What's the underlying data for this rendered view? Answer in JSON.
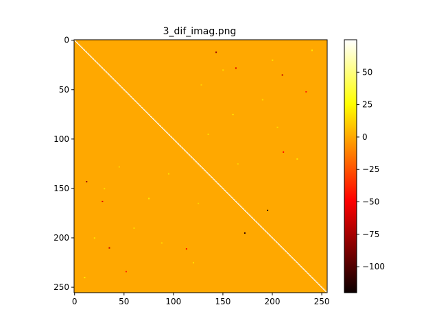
{
  "chart_data": {
    "type": "heatmap",
    "title": "3_dif_imag.png",
    "size": 256,
    "xlim": [
      0,
      256
    ],
    "ylim": [
      256,
      0
    ],
    "y_axis_inverted": true,
    "xticks": [
      0,
      50,
      100,
      150,
      200,
      250
    ],
    "yticks": [
      0,
      50,
      100,
      150,
      200,
      250
    ],
    "colormap": "hot",
    "vmin": -120,
    "vmax": 75,
    "colorbar_ticks": [
      50,
      25,
      0,
      -25,
      -50,
      -75,
      -100
    ],
    "colorbar_tick_labels": [
      "50",
      "25",
      "0",
      "−25",
      "−50",
      "−75",
      "−100"
    ],
    "background_value": 0,
    "diagonal": {
      "from": 0,
      "to": 255,
      "value": 75
    },
    "points": [
      {
        "row": 12,
        "col": 143,
        "value": -80
      },
      {
        "row": 28,
        "col": 163,
        "value": -60
      },
      {
        "row": 35,
        "col": 210,
        "value": -70
      },
      {
        "row": 52,
        "col": 234,
        "value": -40
      },
      {
        "row": 113,
        "col": 211,
        "value": -50
      },
      {
        "row": 143,
        "col": 12,
        "value": -80
      },
      {
        "row": 163,
        "col": 28,
        "value": -60
      },
      {
        "row": 172,
        "col": 195,
        "value": -110
      },
      {
        "row": 195,
        "col": 172,
        "value": -110
      },
      {
        "row": 210,
        "col": 35,
        "value": -70
      },
      {
        "row": 234,
        "col": 52,
        "value": -40
      },
      {
        "row": 211,
        "col": 113,
        "value": -50
      },
      {
        "row": 30,
        "col": 150,
        "value": 15
      },
      {
        "row": 20,
        "col": 200,
        "value": 18
      },
      {
        "row": 45,
        "col": 128,
        "value": 12
      },
      {
        "row": 60,
        "col": 190,
        "value": 15
      },
      {
        "row": 75,
        "col": 160,
        "value": 20
      },
      {
        "row": 88,
        "col": 205,
        "value": 14
      },
      {
        "row": 95,
        "col": 135,
        "value": 16
      },
      {
        "row": 120,
        "col": 225,
        "value": 18
      },
      {
        "row": 125,
        "col": 165,
        "value": 12
      },
      {
        "row": 10,
        "col": 240,
        "value": 20
      },
      {
        "row": 150,
        "col": 30,
        "value": 15
      },
      {
        "row": 200,
        "col": 20,
        "value": 18
      },
      {
        "row": 128,
        "col": 45,
        "value": 12
      },
      {
        "row": 190,
        "col": 60,
        "value": 15
      },
      {
        "row": 160,
        "col": 75,
        "value": 20
      },
      {
        "row": 205,
        "col": 88,
        "value": 14
      },
      {
        "row": 135,
        "col": 95,
        "value": 16
      },
      {
        "row": 225,
        "col": 120,
        "value": 18
      },
      {
        "row": 165,
        "col": 125,
        "value": 12
      },
      {
        "row": 240,
        "col": 10,
        "value": 20
      }
    ]
  }
}
